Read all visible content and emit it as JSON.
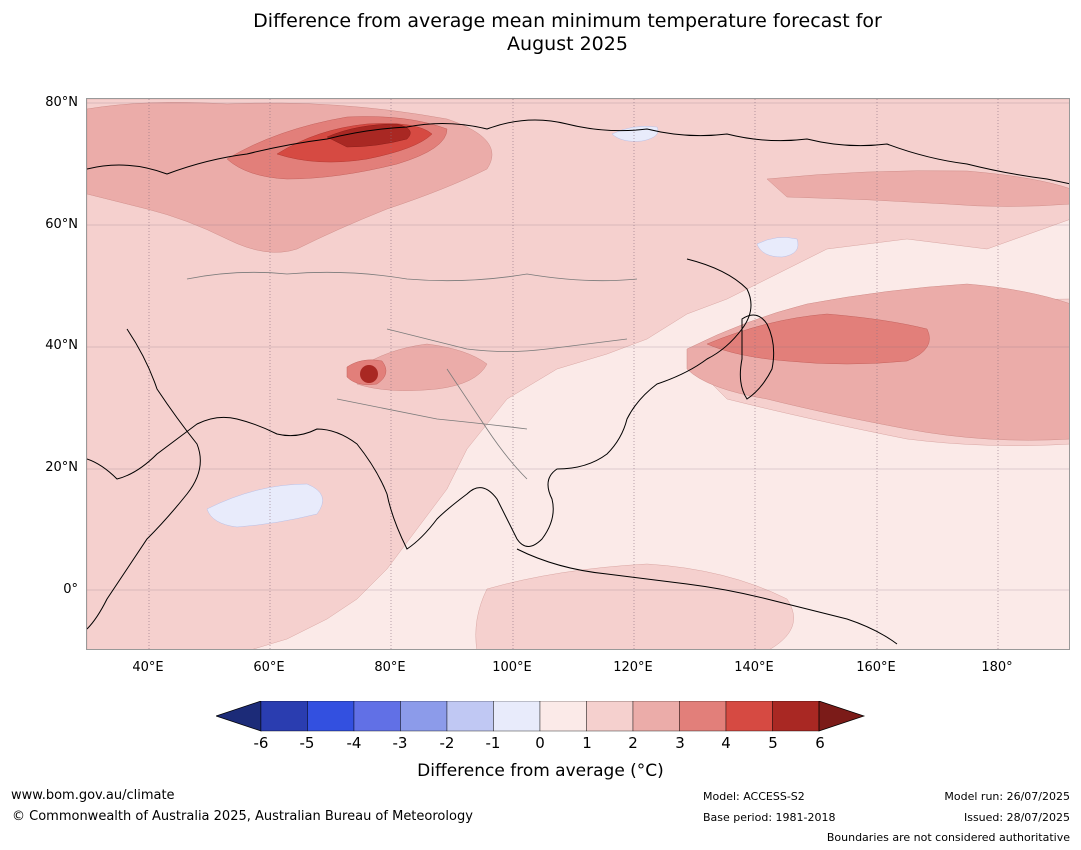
{
  "title": {
    "line1": "Difference from average mean minimum temperature forecast for",
    "line2": "August 2025"
  },
  "map": {
    "lat_labels": [
      "80°N",
      "60°N",
      "40°N",
      "20°N",
      "0°"
    ],
    "lon_labels": [
      "40°E",
      "60°E",
      "80°E",
      "100°E",
      "120°E",
      "140°E",
      "160°E",
      "180°"
    ],
    "extent": {
      "lon": [
        30,
        192
      ],
      "lat": [
        -10,
        80
      ]
    },
    "features": [
      "coastlines",
      "country boundaries",
      "graticule"
    ]
  },
  "colorbar": {
    "ticks": [
      "-6",
      "-5",
      "-4",
      "-3",
      "-2",
      "-1",
      "0",
      "1",
      "2",
      "3",
      "4",
      "5",
      "6"
    ],
    "colors": [
      "#1c2b78",
      "#2a3db0",
      "#3350e0",
      "#6170e6",
      "#8c9bea",
      "#c0c8f3",
      "#e8ebfb",
      "#fbeae8",
      "#f5d0ce",
      "#ebaca9",
      "#e27f7a",
      "#d64a42",
      "#a92823",
      "#7b1b18"
    ],
    "label": "Difference from average (°C)"
  },
  "footer": {
    "website": "www.bom.gov.au/climate",
    "copyright": "© Commonwealth of Australia 2025, Australian Bureau of Meteorology",
    "model": "Model: ACCESS-S2",
    "base_period": "Base period: 1981-2018",
    "model_run": "Model run: 26/07/2025",
    "issued": "Issued: 28/07/2025",
    "disclaimer": "Boundaries are not considered authoritative"
  }
}
